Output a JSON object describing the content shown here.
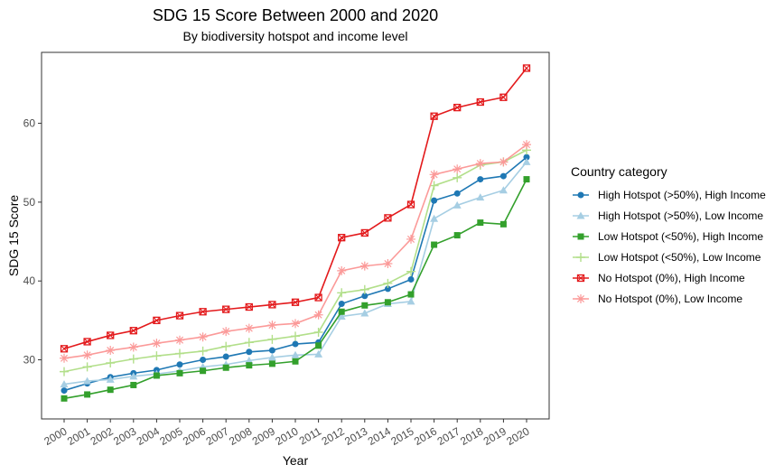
{
  "chart_data": {
    "type": "line",
    "title": "SDG 15 Score Between 2000 and 2020",
    "subtitle": "By biodiversity hotspot and income level",
    "xlabel": "Year",
    "ylabel": "SDG 15 Score",
    "x": [
      "2000",
      "2001",
      "2002",
      "2003",
      "2004",
      "2005",
      "2006",
      "2007",
      "2008",
      "2009",
      "2010",
      "2011",
      "2012",
      "2013",
      "2014",
      "2015",
      "2016",
      "2017",
      "2018",
      "2019",
      "2020"
    ],
    "ylim": [
      22.5,
      69
    ],
    "yticks": [
      30,
      40,
      50,
      60
    ],
    "grid": false,
    "legend_title": "Country category",
    "legend_position": "right",
    "series": [
      {
        "name": "High Hotspot (>50%), High Income",
        "color": "#1f78b4",
        "marker": "circle",
        "values": [
          26.1,
          27.0,
          27.8,
          28.3,
          28.7,
          29.4,
          30.0,
          30.4,
          31.0,
          31.2,
          32.0,
          32.2,
          37.1,
          38.1,
          39.0,
          40.2,
          50.2,
          51.1,
          52.9,
          53.3,
          55.7
        ]
      },
      {
        "name": "High Hotspot (>50%), Low Income",
        "color": "#a6cee3",
        "marker": "triangle",
        "values": [
          26.9,
          27.3,
          27.5,
          27.9,
          28.2,
          28.6,
          29.1,
          29.4,
          29.9,
          30.3,
          30.6,
          30.7,
          35.5,
          35.9,
          37.1,
          37.4,
          47.9,
          49.6,
          50.6,
          51.5,
          55.1
        ]
      },
      {
        "name": "Low Hotspot (<50%), High Income",
        "color": "#33a02c",
        "marker": "square",
        "values": [
          25.1,
          25.6,
          26.2,
          26.8,
          28.0,
          28.3,
          28.6,
          29.0,
          29.3,
          29.5,
          29.8,
          31.8,
          36.1,
          36.9,
          37.3,
          38.3,
          44.6,
          45.8,
          47.4,
          47.2,
          52.9
        ]
      },
      {
        "name": "Low Hotspot (<50%), Low Income",
        "color": "#b2df8a",
        "marker": "plus",
        "values": [
          28.5,
          29.1,
          29.6,
          30.1,
          30.5,
          30.8,
          31.1,
          31.7,
          32.2,
          32.6,
          33.0,
          33.5,
          38.5,
          38.9,
          39.7,
          41.2,
          52.1,
          53.1,
          54.7,
          55.1,
          56.6
        ]
      },
      {
        "name": "No Hotspot (0%), High Income",
        "color": "#e31a1c",
        "marker": "boxx",
        "values": [
          31.4,
          32.3,
          33.1,
          33.7,
          35.0,
          35.6,
          36.1,
          36.4,
          36.7,
          37.0,
          37.3,
          37.9,
          45.5,
          46.1,
          48.0,
          49.7,
          60.9,
          62.0,
          62.7,
          63.3,
          67.0
        ]
      },
      {
        "name": "No Hotspot (0%), Low Income",
        "color": "#fb9a99",
        "marker": "star",
        "values": [
          30.2,
          30.6,
          31.2,
          31.6,
          32.1,
          32.5,
          32.9,
          33.6,
          34.0,
          34.4,
          34.6,
          35.7,
          41.3,
          41.9,
          42.2,
          45.3,
          53.5,
          54.2,
          54.9,
          55.1,
          57.3
        ]
      }
    ]
  }
}
